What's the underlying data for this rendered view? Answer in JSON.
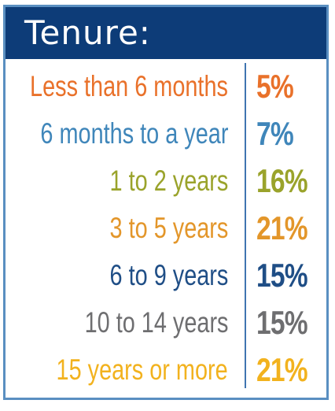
{
  "chart_data": {
    "type": "table",
    "title": "Tenure:",
    "rows": [
      {
        "label": "Less than 6 months",
        "value": "5%",
        "color": "#e9712a"
      },
      {
        "label": "6 months to a year",
        "value": "7%",
        "color": "#3f86ba"
      },
      {
        "label": "1 to 2 years",
        "value": "16%",
        "color": "#9aa32b"
      },
      {
        "label": "3 to 5 years",
        "value": "21%",
        "color": "#e3962a"
      },
      {
        "label": "6 to 9 years",
        "value": "15%",
        "color": "#1f4e86"
      },
      {
        "label": "10 to 14 years",
        "value": "15%",
        "color": "#6e6e70"
      },
      {
        "label": "15 years or more",
        "value": "21%",
        "color": "#f2b21e"
      }
    ]
  },
  "colors": {
    "header_bg": "#0d3c78",
    "border": "#5a8fc1",
    "divider": "#3f74b0"
  }
}
